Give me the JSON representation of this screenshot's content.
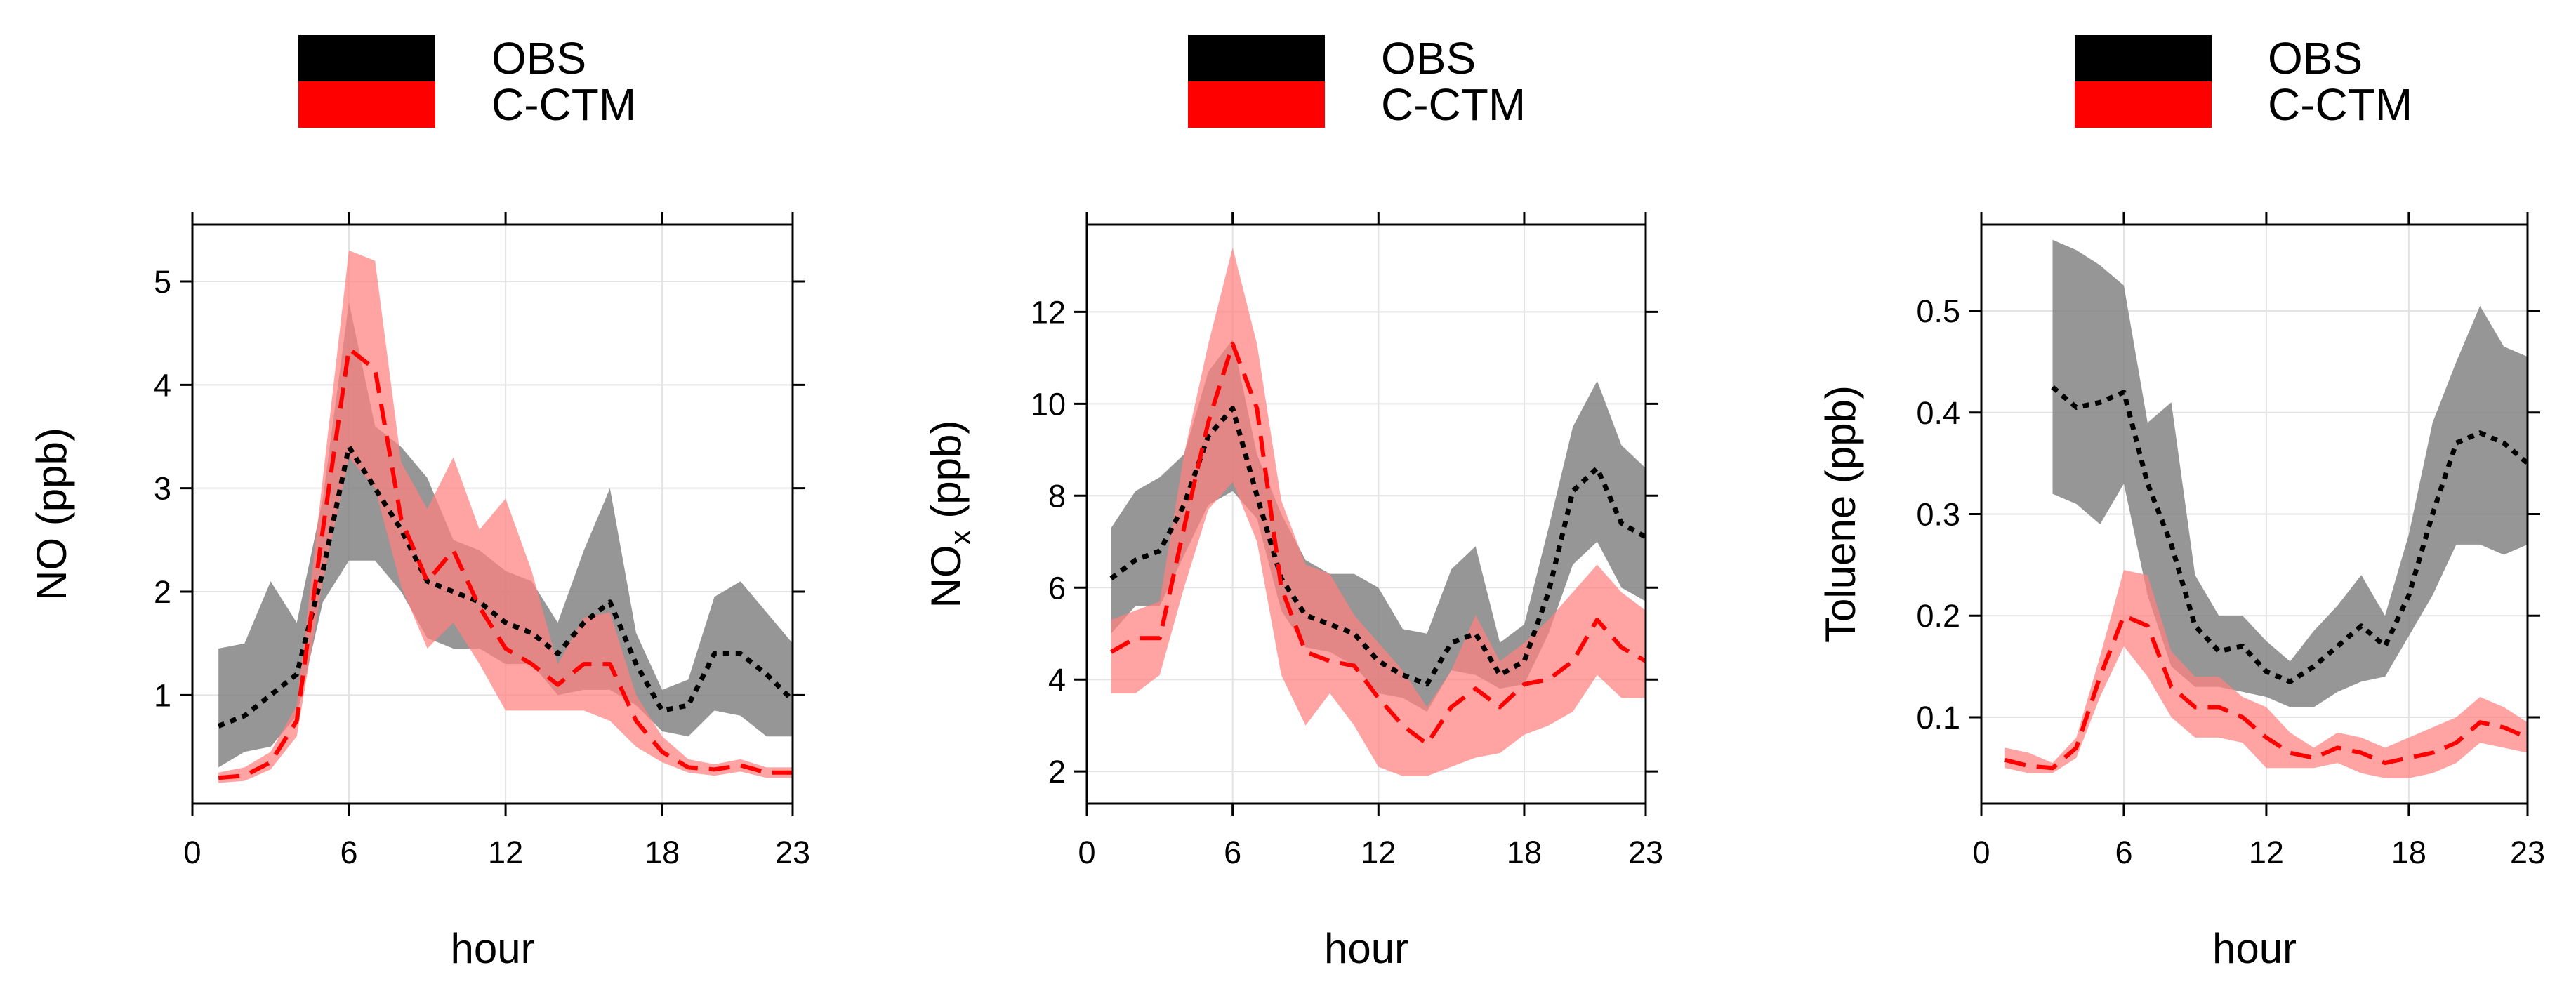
{
  "colors": {
    "obs_line": "#000000",
    "obs_band": "#7f7f7f",
    "obs_legend": "#000000",
    "model_line": "#ff0000",
    "model_band": "#ff8080",
    "model_legend": "#ff0000",
    "grid": "#e3e3e3",
    "axis": "#000000"
  },
  "legend": [
    {
      "key": "obs",
      "label": "OBS"
    },
    {
      "key": "model",
      "label": "C-CTM"
    }
  ],
  "xlabel": "hour",
  "chart_data": [
    {
      "type": "line",
      "ylabel": "NO (ppb)",
      "ylabel_sub": "",
      "ylabel_tail": "",
      "xlabel": "hour",
      "xlim": [
        0,
        23
      ],
      "ylim": [
        -0.05,
        5.55
      ],
      "xticks": [
        0,
        6,
        12,
        18,
        23
      ],
      "yticks": [
        1,
        2,
        3,
        4,
        5
      ],
      "tick_decimals": 0,
      "series": [
        {
          "name": "OBS",
          "style": "dotted",
          "x": [
            1,
            2,
            3,
            4,
            5,
            6,
            7,
            8,
            9,
            10,
            11,
            12,
            13,
            14,
            15,
            16,
            17,
            18,
            19,
            20,
            21,
            22,
            23
          ],
          "values": [
            0.7,
            0.8,
            1.0,
            1.2,
            2.2,
            3.4,
            3.0,
            2.6,
            2.1,
            2.0,
            1.9,
            1.7,
            1.6,
            1.4,
            1.7,
            1.9,
            1.3,
            0.85,
            0.9,
            1.4,
            1.4,
            1.2,
            0.95
          ],
          "lower": [
            0.3,
            0.45,
            0.5,
            0.8,
            1.9,
            2.3,
            2.3,
            2.0,
            1.55,
            1.45,
            1.45,
            1.3,
            1.3,
            1.0,
            1.05,
            1.05,
            0.9,
            0.65,
            0.6,
            0.85,
            0.8,
            0.6,
            0.6
          ],
          "upper": [
            1.45,
            1.5,
            2.1,
            1.7,
            2.9,
            4.8,
            3.6,
            3.4,
            3.1,
            2.5,
            2.4,
            2.2,
            2.1,
            1.7,
            2.4,
            3.0,
            1.6,
            1.05,
            1.15,
            1.95,
            2.1,
            1.8,
            1.5
          ]
        },
        {
          "name": "C-CTM",
          "style": "dashed",
          "x": [
            1,
            2,
            3,
            4,
            5,
            6,
            7,
            8,
            9,
            10,
            11,
            12,
            13,
            14,
            15,
            16,
            17,
            18,
            19,
            20,
            21,
            22,
            23
          ],
          "values": [
            0.2,
            0.22,
            0.35,
            0.75,
            2.6,
            4.35,
            4.15,
            2.7,
            2.1,
            2.4,
            1.85,
            1.45,
            1.3,
            1.1,
            1.3,
            1.3,
            0.75,
            0.45,
            0.3,
            0.28,
            0.32,
            0.25,
            0.25
          ],
          "lower": [
            0.15,
            0.17,
            0.28,
            0.6,
            2.1,
            3.3,
            3.0,
            2.05,
            1.45,
            1.7,
            1.3,
            0.85,
            0.85,
            0.85,
            0.85,
            0.75,
            0.5,
            0.35,
            0.25,
            0.22,
            0.26,
            0.2,
            0.2
          ],
          "upper": [
            0.25,
            0.3,
            0.45,
            0.9,
            3.1,
            5.3,
            5.2,
            3.25,
            2.8,
            3.3,
            2.6,
            2.9,
            2.2,
            1.3,
            1.75,
            1.8,
            1.0,
            0.6,
            0.38,
            0.33,
            0.38,
            0.3,
            0.3
          ]
        }
      ]
    },
    {
      "type": "line",
      "ylabel": "NO",
      "ylabel_sub": "x",
      "ylabel_tail": " (ppb)",
      "xlabel": "hour",
      "xlim": [
        0,
        23
      ],
      "ylim": [
        1.3,
        13.9
      ],
      "xticks": [
        0,
        6,
        12,
        18,
        23
      ],
      "yticks": [
        2,
        4,
        6,
        8,
        10,
        12
      ],
      "tick_decimals": 0,
      "series": [
        {
          "name": "OBS",
          "style": "dotted",
          "x": [
            1,
            2,
            3,
            4,
            5,
            6,
            7,
            8,
            9,
            10,
            11,
            12,
            13,
            14,
            15,
            16,
            17,
            18,
            19,
            20,
            21,
            22,
            23
          ],
          "values": [
            6.2,
            6.6,
            6.8,
            7.8,
            9.3,
            9.9,
            8.0,
            6.2,
            5.4,
            5.2,
            5.0,
            4.4,
            4.1,
            3.9,
            4.8,
            5.0,
            4.1,
            4.4,
            5.9,
            8.1,
            8.6,
            7.4,
            7.1
          ],
          "lower": [
            5.0,
            5.6,
            5.6,
            6.7,
            7.8,
            8.1,
            7.5,
            5.5,
            4.7,
            4.6,
            4.3,
            3.7,
            3.6,
            3.3,
            4.2,
            4.1,
            3.8,
            3.9,
            5.0,
            6.5,
            7.0,
            6.0,
            5.7
          ],
          "upper": [
            7.3,
            8.1,
            8.4,
            8.9,
            10.7,
            11.4,
            8.9,
            7.6,
            6.6,
            6.3,
            6.3,
            6.0,
            5.1,
            5.0,
            6.4,
            6.9,
            4.8,
            5.2,
            7.3,
            9.5,
            10.5,
            9.1,
            8.6
          ]
        },
        {
          "name": "C-CTM",
          "style": "dashed",
          "x": [
            1,
            2,
            3,
            4,
            5,
            6,
            7,
            8,
            9,
            10,
            11,
            12,
            13,
            14,
            15,
            16,
            17,
            18,
            19,
            20,
            21,
            22,
            23
          ],
          "values": [
            4.6,
            4.9,
            4.9,
            7.3,
            9.6,
            11.3,
            9.9,
            6.0,
            4.6,
            4.4,
            4.3,
            3.6,
            3.0,
            2.6,
            3.4,
            3.8,
            3.4,
            3.9,
            4.0,
            4.4,
            5.3,
            4.7,
            4.4
          ],
          "lower": [
            3.7,
            3.7,
            4.1,
            6.0,
            7.7,
            8.3,
            7.0,
            4.1,
            3.0,
            3.7,
            3.0,
            2.1,
            1.9,
            1.9,
            2.1,
            2.3,
            2.4,
            2.8,
            3.0,
            3.3,
            4.1,
            3.6,
            3.6
          ],
          "upper": [
            5.3,
            5.5,
            5.7,
            8.9,
            11.3,
            13.4,
            11.3,
            7.9,
            6.5,
            6.3,
            5.4,
            4.8,
            4.2,
            3.4,
            4.2,
            5.4,
            4.4,
            4.8,
            5.3,
            5.9,
            6.5,
            5.9,
            5.5
          ]
        }
      ]
    },
    {
      "type": "line",
      "ylabel": "Toluene (ppb)",
      "ylabel_sub": "",
      "ylabel_tail": "",
      "xlabel": "hour",
      "xlim": [
        0,
        23
      ],
      "ylim": [
        0.015,
        0.585
      ],
      "xticks": [
        0,
        6,
        12,
        18,
        23
      ],
      "yticks": [
        0.1,
        0.2,
        0.3,
        0.4,
        0.5
      ],
      "tick_decimals": 1,
      "series": [
        {
          "name": "OBS",
          "style": "dotted",
          "x": [
            3,
            4,
            5,
            6,
            7,
            8,
            9,
            10,
            11,
            12,
            13,
            14,
            15,
            16,
            17,
            18,
            19,
            20,
            21,
            22,
            23
          ],
          "values": [
            0.425,
            0.405,
            0.41,
            0.42,
            0.33,
            0.27,
            0.19,
            0.165,
            0.17,
            0.145,
            0.135,
            0.15,
            0.17,
            0.19,
            0.17,
            0.22,
            0.3,
            0.37,
            0.38,
            0.37,
            0.35
          ],
          "lower": [
            0.32,
            0.31,
            0.29,
            0.33,
            0.22,
            0.15,
            0.13,
            0.13,
            0.125,
            0.12,
            0.11,
            0.11,
            0.125,
            0.135,
            0.14,
            0.18,
            0.22,
            0.27,
            0.27,
            0.26,
            0.27
          ],
          "upper": [
            0.57,
            0.56,
            0.545,
            0.525,
            0.39,
            0.41,
            0.24,
            0.2,
            0.2,
            0.175,
            0.155,
            0.185,
            0.21,
            0.24,
            0.2,
            0.28,
            0.39,
            0.45,
            0.505,
            0.465,
            0.455
          ]
        },
        {
          "name": "C-CTM",
          "style": "dashed",
          "x": [
            1,
            2,
            3,
            4,
            5,
            6,
            7,
            8,
            9,
            10,
            11,
            12,
            13,
            14,
            15,
            16,
            17,
            18,
            19,
            20,
            21,
            22,
            23
          ],
          "values": [
            0.058,
            0.052,
            0.05,
            0.07,
            0.14,
            0.2,
            0.19,
            0.13,
            0.11,
            0.11,
            0.1,
            0.08,
            0.065,
            0.06,
            0.07,
            0.065,
            0.055,
            0.06,
            0.065,
            0.075,
            0.095,
            0.09,
            0.08
          ],
          "lower": [
            0.05,
            0.045,
            0.045,
            0.06,
            0.12,
            0.17,
            0.14,
            0.1,
            0.08,
            0.08,
            0.075,
            0.05,
            0.05,
            0.05,
            0.055,
            0.045,
            0.04,
            0.04,
            0.045,
            0.055,
            0.075,
            0.07,
            0.065
          ],
          "upper": [
            0.07,
            0.065,
            0.055,
            0.08,
            0.16,
            0.245,
            0.24,
            0.165,
            0.14,
            0.14,
            0.12,
            0.11,
            0.085,
            0.07,
            0.085,
            0.08,
            0.07,
            0.08,
            0.09,
            0.1,
            0.12,
            0.11,
            0.095
          ]
        }
      ]
    }
  ]
}
